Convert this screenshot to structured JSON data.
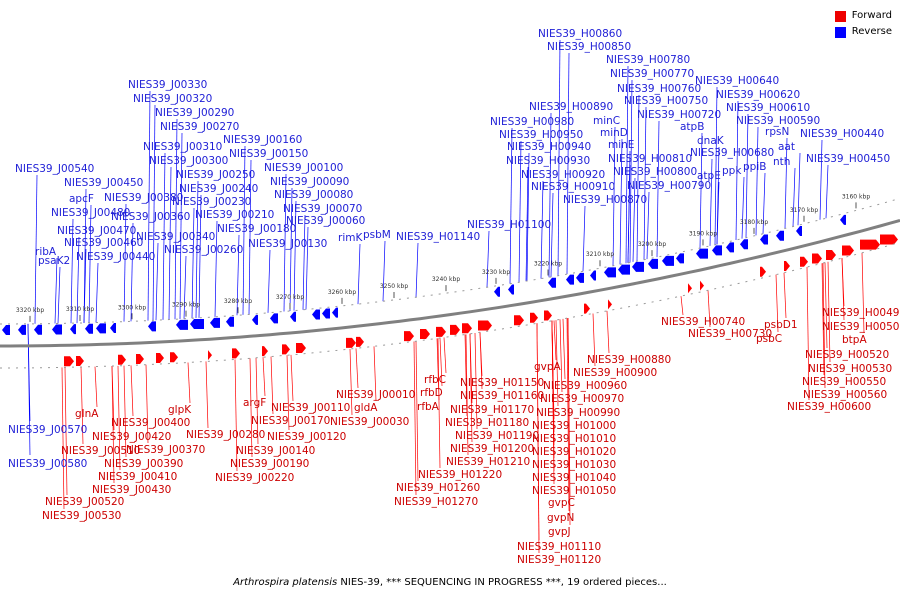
{
  "colors": {
    "forward": "#ff0000",
    "reverse": "#0000ff",
    "forward_label": "#cc0000",
    "reverse_label": "#1f1fd6",
    "backbone": "#808080"
  },
  "legend": [
    {
      "label": "Forward",
      "color": "#ee0000"
    },
    {
      "label": "Reverse",
      "color": "#0000ff"
    }
  ],
  "caption": {
    "species": "Arthrospira platensis",
    "rest": " NIES-39, *** SEQUENCING IN PROGRESS ***, 19 ordered pieces..."
  },
  "scale_ticks": [
    {
      "label": "3320 kbp"
    },
    {
      "label": "3310 kbp"
    },
    {
      "label": "3300 kbp"
    },
    {
      "label": "3290 kbp"
    },
    {
      "label": "3280 kbp"
    },
    {
      "label": "3270 kbp"
    },
    {
      "label": "3260 kbp"
    },
    {
      "label": "3250 kbp"
    },
    {
      "label": "3240 kbp"
    },
    {
      "label": "3230 kbp"
    },
    {
      "label": "3220 kbp"
    },
    {
      "label": "3210 kbp"
    },
    {
      "label": "3200 kbp"
    },
    {
      "label": "3190 kbp"
    },
    {
      "label": "3180 kbp"
    },
    {
      "label": "3170 kbp"
    },
    {
      "label": "3160 kbp"
    }
  ],
  "reverse_labels": [
    "NIES39_J00330",
    "NIES39_J00320",
    "NIES39_J00290",
    "NIES39_J00270",
    "NIES39_J00310",
    "NIES39_J00300",
    "NIES39_J00250",
    "NIES39_J00240",
    "NIES39_J00230",
    "NIES39_J00210",
    "NIES39_J00380",
    "NIES39_J00360",
    "NIES39_J00340",
    "NIES39_J00260",
    "NIES39_J00160",
    "NIES39_J00150",
    "NIES39_J00100",
    "NIES39_J00090",
    "NIES39_J00080",
    "NIES39_J00070",
    "NIES39_J00060",
    "NIES39_J00180",
    "NIES39_J00130",
    "rimK",
    "psbM",
    "NIES39_J00540",
    "NIES39_J00450",
    "apcF",
    "NIES39_J00480",
    "NIES39_J00470",
    "NIES39_J00460",
    "ribA",
    "psaK2",
    "NIES39_J00440",
    "NIES39_J00570",
    "NIES39_J00580",
    "NIES39_H01140",
    "NIES39_H01100",
    "NIES39_H00860",
    "NIES39_H00850",
    "NIES39_H00890",
    "NIES39_H00980",
    "NIES39_H00950",
    "NIES39_H00940",
    "NIES39_H00930",
    "NIES39_H00920",
    "NIES39_H00910",
    "NIES39_H00870",
    "minC",
    "minD",
    "minE",
    "NIES39_H00810",
    "NIES39_H00800",
    "NIES39_H00790",
    "NIES39_H00780",
    "NIES39_H00770",
    "NIES39_H00760",
    "NIES39_H00750",
    "NIES39_H00720",
    "atpB",
    "dnaK",
    "NIES39_H00680",
    "atpE",
    "ppk",
    "NIES39_H00640",
    "NIES39_H00620",
    "NIES39_H00610",
    "NIES39_H00590",
    "rpsN",
    "ppiB",
    "aat",
    "nth",
    "NIES39_H00440",
    "NIES39_H00450"
  ],
  "forward_labels": [
    "glnA",
    "NIES39_J00510",
    "NIES39_J00520",
    "NIES39_J00530",
    "NIES39_J00420",
    "NIES39_J00400",
    "NIES39_J00390",
    "NIES39_J00370",
    "NIES39_J00410",
    "NIES39_J00430",
    "glpK",
    "NIES39_J00280",
    "argF",
    "NIES39_J00220",
    "NIES39_J00190",
    "NIES39_J00170",
    "NIES39_J00110",
    "NIES39_J00120",
    "NIES39_J00140",
    "NIES39_J00010",
    "gldA",
    "NIES39_J00030",
    "rfbC",
    "rfbD",
    "rfbA",
    "NIES39_H01150",
    "NIES39_H01160",
    "NIES39_H01170",
    "NIES39_H01180",
    "NIES39_H01190",
    "NIES39_H01200",
    "NIES39_H01210",
    "NIES39_H01220",
    "NIES39_H01260",
    "NIES39_H01270",
    "gvpA",
    "NIES39_H00880",
    "NIES39_H00900",
    "NIES39_H00960",
    "NIES39_H00970",
    "NIES39_H00990",
    "NIES39_H01000",
    "NIES39_H01010",
    "NIES39_H01020",
    "NIES39_H01030",
    "NIES39_H01040",
    "NIES39_H01050",
    "gvpC",
    "gvpN",
    "gvpJ",
    "NIES39_H01110",
    "NIES39_H01120",
    "NIES39_H00740",
    "NIES39_H00730",
    "psbD1",
    "psbC",
    "NIES39_H00490",
    "NIES39_H00500",
    "btpA",
    "NIES39_H00520",
    "NIES39_H00530",
    "NIES39_H00550",
    "NIES39_H00560",
    "NIES39_H00600"
  ]
}
